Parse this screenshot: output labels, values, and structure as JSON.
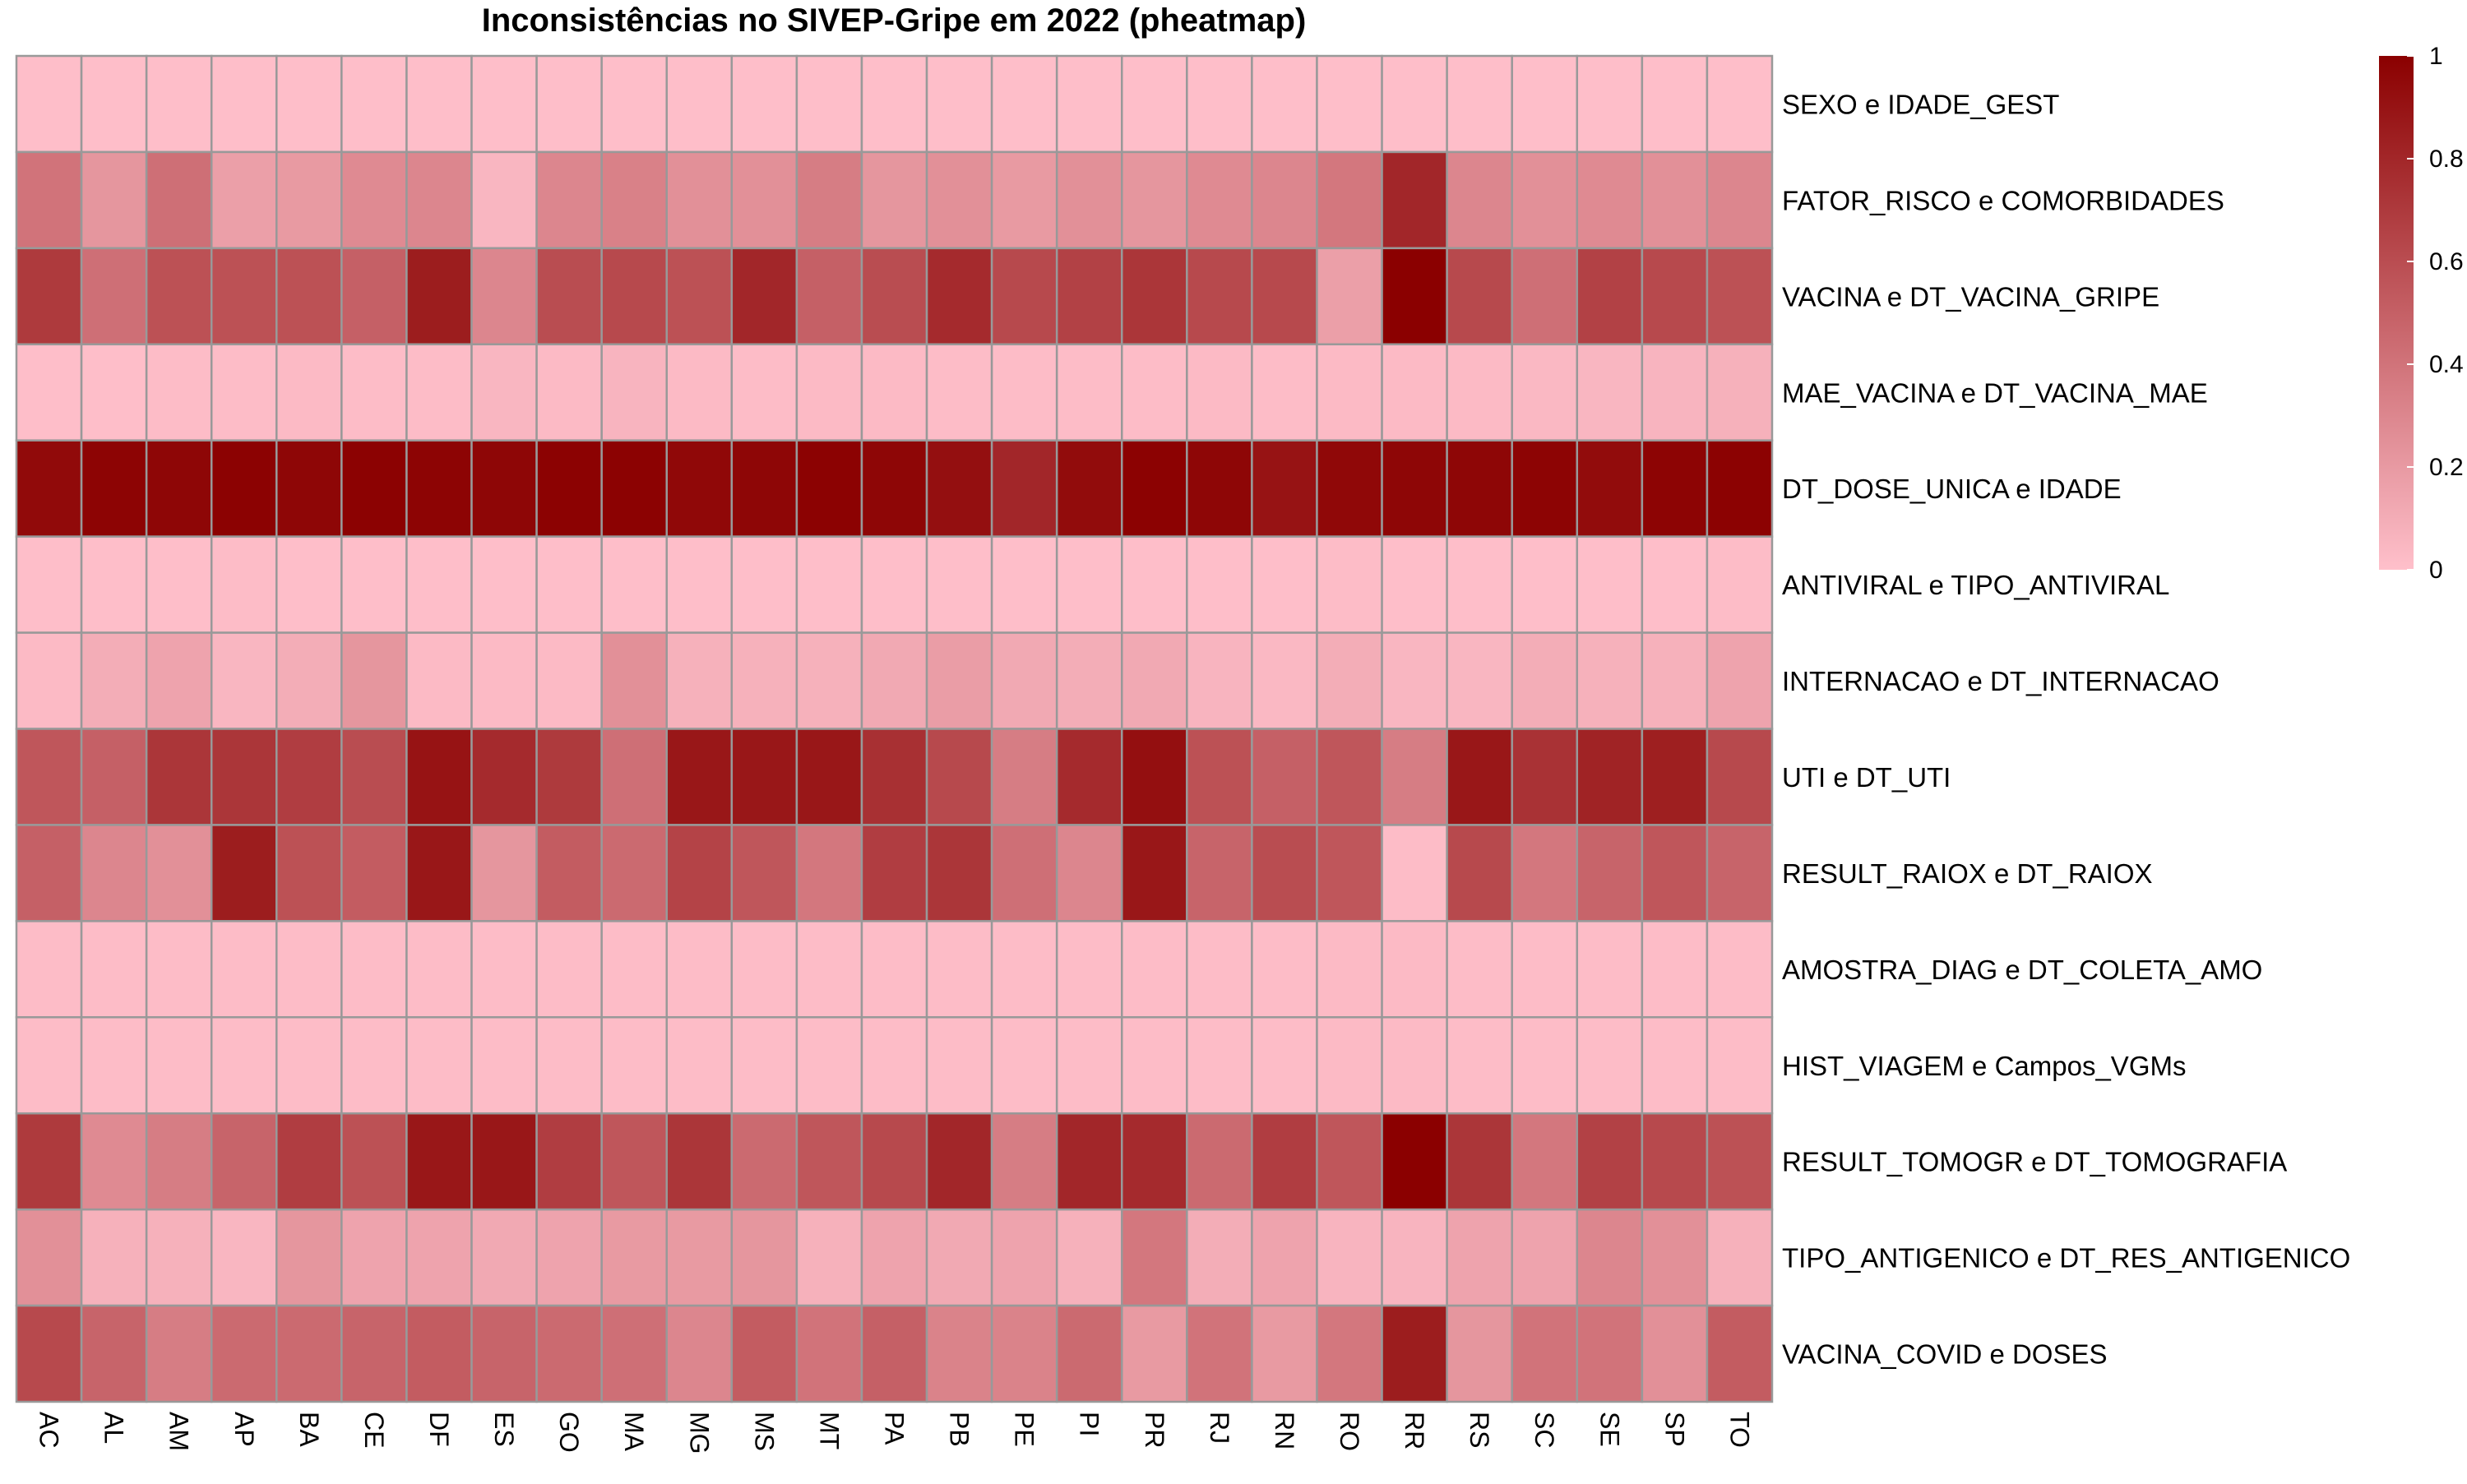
{
  "chart_data": {
    "type": "heatmap",
    "title": "Inconsistências no SIVEP-Gripe em 2022 (pheatmap)",
    "xlabel": "",
    "ylabel": "",
    "columns": [
      "AC",
      "AL",
      "AM",
      "AP",
      "BA",
      "CE",
      "DF",
      "ES",
      "GO",
      "MA",
      "MG",
      "MS",
      "MT",
      "PA",
      "PB",
      "PE",
      "PI",
      "PR",
      "RJ",
      "RN",
      "RO",
      "RR",
      "RS",
      "SC",
      "SE",
      "SP",
      "TO"
    ],
    "rows": [
      "SEXO e IDADE_GEST",
      "FATOR_RISCO e COMORBIDADES",
      "VACINA e DT_VACINA_GRIPE",
      "MAE_VACINA e DT_VACINA_MAE",
      "DT_DOSE_UNICA e IDADE",
      "ANTIVIRAL e TIPO_ANTIVIRAL",
      "INTERNACAO e DT_INTERNACAO",
      "UTI e DT_UTI",
      "RESULT_RAIOX e DT_RAIOX",
      "AMOSTRA_DIAG e DT_COLETA_AMO",
      "HIST_VIAGEM e Campos_VGMs",
      "RESULT_TOMOGR e DT_TOMOGRAFIA",
      "TIPO_ANTIGENICO e DT_RES_ANTIGENICO",
      "VACINA_COVID e DOSES"
    ],
    "values": [
      [
        0.01,
        0.01,
        0.01,
        0.01,
        0.01,
        0.01,
        0.01,
        0.01,
        0.01,
        0.01,
        0.01,
        0.01,
        0.01,
        0.01,
        0.01,
        0.01,
        0.01,
        0.01,
        0.01,
        0.01,
        0.01,
        0.01,
        0.01,
        0.01,
        0.01,
        0.01,
        0.01
      ],
      [
        0.4,
        0.22,
        0.42,
        0.17,
        0.2,
        0.28,
        0.3,
        0.05,
        0.3,
        0.33,
        0.25,
        0.25,
        0.35,
        0.22,
        0.25,
        0.2,
        0.25,
        0.22,
        0.28,
        0.3,
        0.38,
        0.8,
        0.3,
        0.25,
        0.28,
        0.25,
        0.3
      ],
      [
        0.7,
        0.42,
        0.58,
        0.58,
        0.58,
        0.5,
        0.85,
        0.3,
        0.6,
        0.62,
        0.58,
        0.8,
        0.5,
        0.6,
        0.78,
        0.62,
        0.66,
        0.72,
        0.62,
        0.62,
        0.17,
        1.0,
        0.62,
        0.42,
        0.66,
        0.62,
        0.58
      ],
      [
        0.01,
        0.01,
        0.02,
        0.02,
        0.03,
        0.02,
        0.02,
        0.05,
        0.03,
        0.06,
        0.03,
        0.02,
        0.03,
        0.03,
        0.02,
        0.02,
        0.02,
        0.02,
        0.03,
        0.02,
        0.03,
        0.03,
        0.03,
        0.04,
        0.05,
        0.06,
        0.08
      ],
      [
        0.95,
        0.98,
        0.97,
        0.99,
        0.97,
        0.99,
        0.98,
        0.97,
        0.99,
        0.99,
        0.96,
        0.97,
        0.99,
        0.97,
        0.92,
        0.8,
        0.94,
        0.99,
        0.97,
        0.9,
        0.96,
        0.97,
        0.97,
        0.98,
        0.94,
        0.98,
        0.99
      ],
      [
        0.01,
        0.01,
        0.01,
        0.02,
        0.01,
        0.01,
        0.01,
        0.01,
        0.01,
        0.01,
        0.01,
        0.01,
        0.01,
        0.01,
        0.01,
        0.01,
        0.01,
        0.01,
        0.01,
        0.01,
        0.02,
        0.01,
        0.01,
        0.01,
        0.01,
        0.01,
        0.02
      ],
      [
        0.03,
        0.1,
        0.15,
        0.05,
        0.1,
        0.22,
        0.03,
        0.03,
        0.03,
        0.25,
        0.08,
        0.08,
        0.08,
        0.12,
        0.18,
        0.12,
        0.1,
        0.12,
        0.06,
        0.04,
        0.1,
        0.05,
        0.05,
        0.1,
        0.08,
        0.08,
        0.15
      ],
      [
        0.55,
        0.5,
        0.72,
        0.72,
        0.68,
        0.6,
        0.9,
        0.78,
        0.7,
        0.42,
        0.88,
        0.88,
        0.88,
        0.75,
        0.62,
        0.35,
        0.78,
        0.92,
        0.58,
        0.5,
        0.55,
        0.35,
        0.88,
        0.74,
        0.82,
        0.84,
        0.62
      ],
      [
        0.5,
        0.3,
        0.25,
        0.85,
        0.58,
        0.52,
        0.88,
        0.22,
        0.52,
        0.45,
        0.65,
        0.55,
        0.38,
        0.68,
        0.72,
        0.42,
        0.3,
        0.88,
        0.48,
        0.6,
        0.55,
        0.02,
        0.62,
        0.38,
        0.48,
        0.55,
        0.48
      ],
      [
        0.02,
        0.02,
        0.02,
        0.02,
        0.02,
        0.02,
        0.02,
        0.02,
        0.02,
        0.02,
        0.02,
        0.02,
        0.02,
        0.02,
        0.02,
        0.02,
        0.02,
        0.02,
        0.02,
        0.02,
        0.03,
        0.03,
        0.02,
        0.02,
        0.02,
        0.02,
        0.02
      ],
      [
        0.02,
        0.02,
        0.02,
        0.02,
        0.02,
        0.02,
        0.02,
        0.02,
        0.02,
        0.02,
        0.02,
        0.02,
        0.02,
        0.02,
        0.02,
        0.02,
        0.02,
        0.02,
        0.02,
        0.02,
        0.03,
        0.03,
        0.02,
        0.02,
        0.02,
        0.02,
        0.02
      ],
      [
        0.7,
        0.28,
        0.35,
        0.48,
        0.68,
        0.58,
        0.88,
        0.88,
        0.68,
        0.55,
        0.72,
        0.45,
        0.55,
        0.62,
        0.8,
        0.35,
        0.8,
        0.78,
        0.45,
        0.68,
        0.55,
        1.0,
        0.72,
        0.38,
        0.66,
        0.62,
        0.58
      ],
      [
        0.25,
        0.08,
        0.08,
        0.05,
        0.22,
        0.15,
        0.15,
        0.12,
        0.15,
        0.2,
        0.2,
        0.22,
        0.08,
        0.15,
        0.12,
        0.15,
        0.08,
        0.38,
        0.1,
        0.15,
        0.06,
        0.06,
        0.15,
        0.15,
        0.3,
        0.25,
        0.08
      ],
      [
        0.62,
        0.48,
        0.35,
        0.45,
        0.45,
        0.48,
        0.52,
        0.48,
        0.45,
        0.42,
        0.3,
        0.52,
        0.4,
        0.5,
        0.32,
        0.32,
        0.45,
        0.2,
        0.4,
        0.2,
        0.38,
        0.85,
        0.22,
        0.4,
        0.4,
        0.25,
        0.52
      ]
    ],
    "legend": {
      "position": "right",
      "ticks": [
        "0",
        "0.2",
        "0.4",
        "0.6",
        "0.8",
        "1"
      ],
      "range": [
        0,
        1
      ],
      "color_low": "#ffc0cb",
      "color_high": "#8b0000"
    },
    "cell_border_color": "#999999"
  }
}
